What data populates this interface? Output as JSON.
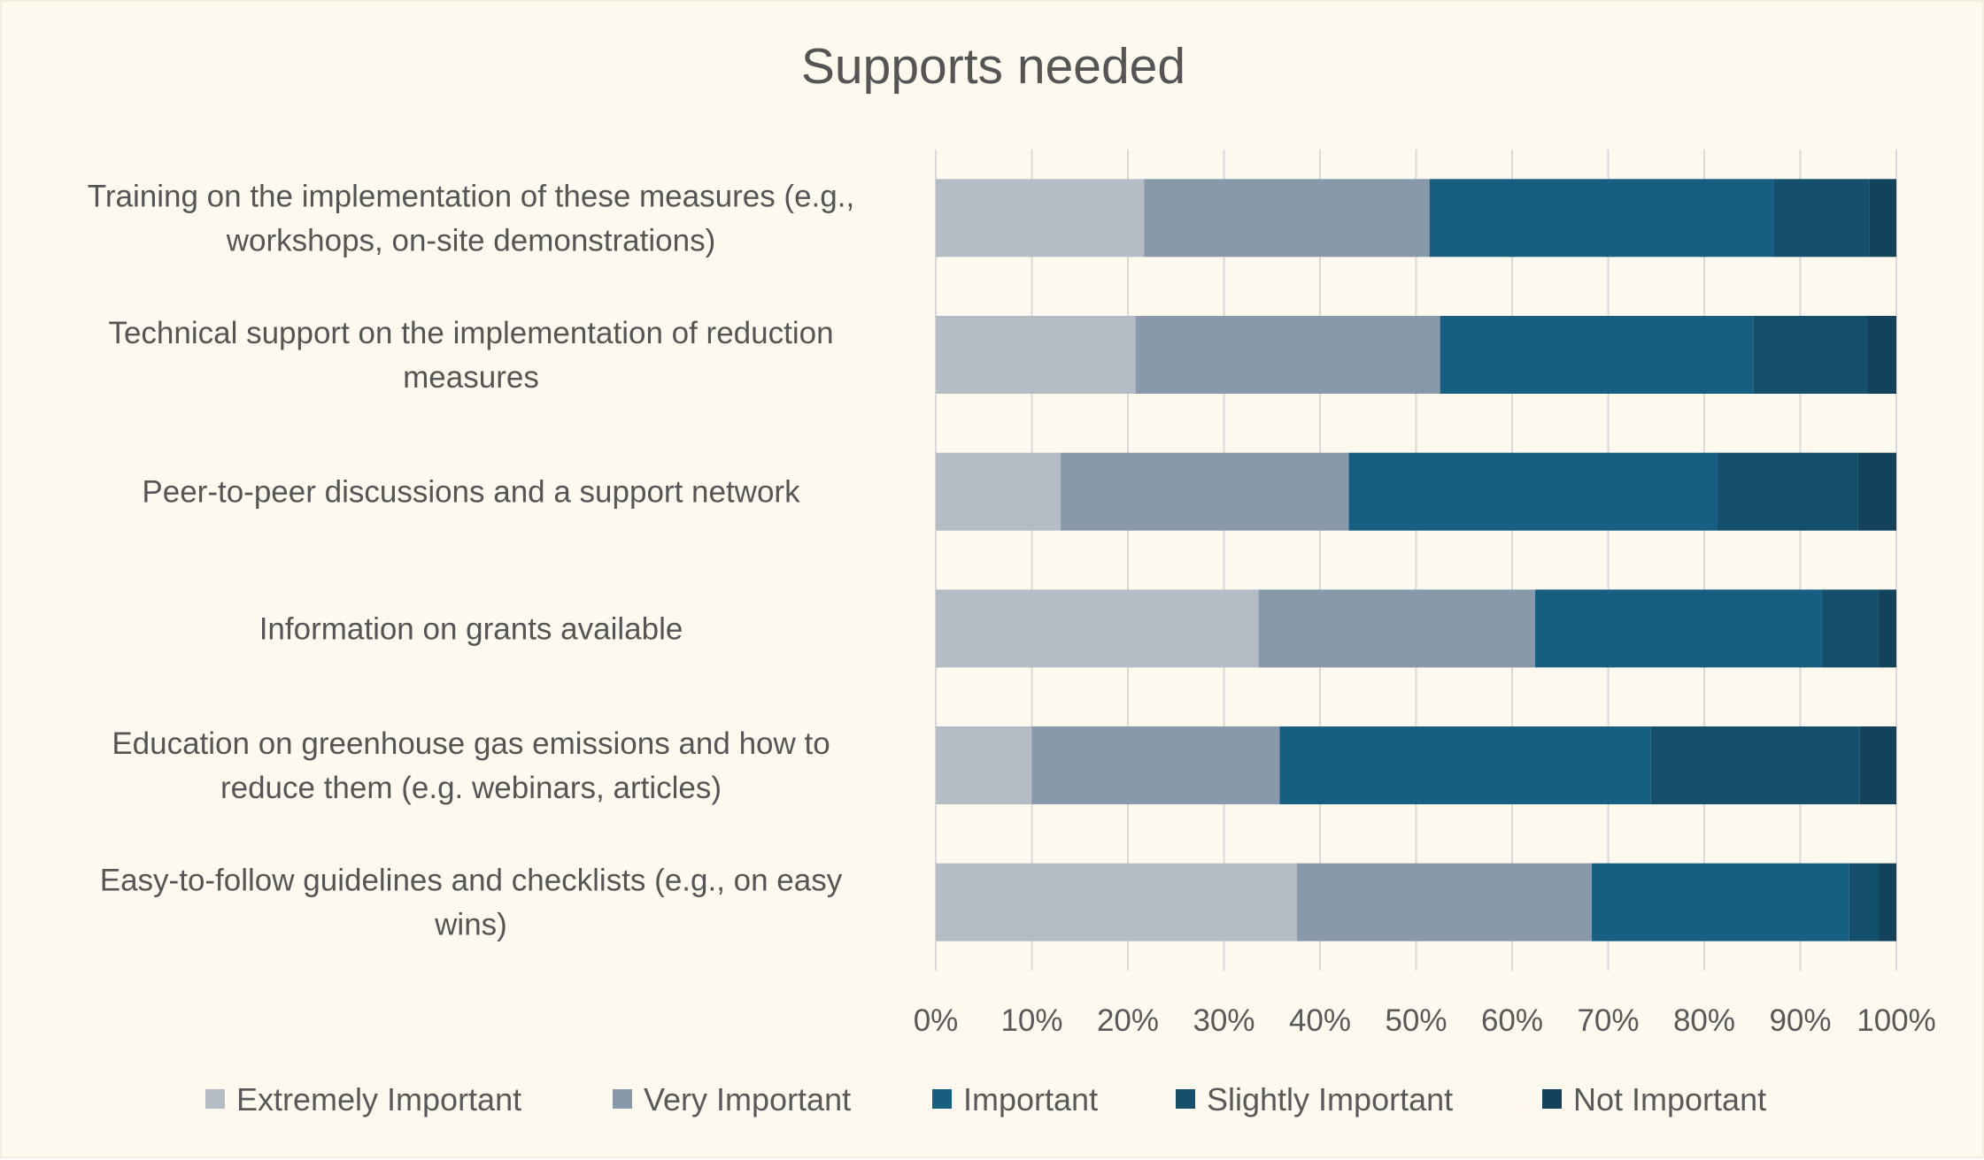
{
  "chart_data": {
    "type": "bar",
    "orientation": "horizontal",
    "stacked": "percent",
    "title": "Supports needed",
    "xlabel": "",
    "ylabel": "",
    "xlim": [
      0,
      100
    ],
    "grid": true,
    "legend_position": "bottom",
    "x_tick_labels": [
      "0%",
      "10%",
      "20%",
      "30%",
      "40%",
      "50%",
      "60%",
      "70%",
      "80%",
      "90%",
      "100%"
    ],
    "categories": [
      [
        "Training on the implementation of these measures (e.g.,",
        "workshops, on-site demonstrations)"
      ],
      [
        "Technical support on the implementation of reduction",
        "measures"
      ],
      [
        "Peer-to-peer discussions and a support network"
      ],
      [
        "Information on grants available"
      ],
      [
        "Education on greenhouse gas emissions and how to",
        "reduce them (e.g. webinars, articles)"
      ],
      [
        "Easy-to-follow guidelines and checklists (e.g., on easy",
        "wins)"
      ]
    ],
    "series": [
      {
        "name": "Extremely Important",
        "color": "#b4bdc6",
        "values": [
          21.7,
          20.8,
          13.0,
          33.6,
          10.0,
          37.6
        ]
      },
      {
        "name": "Very Important",
        "color": "#8899aa",
        "values": [
          29.7,
          31.7,
          30.0,
          28.8,
          25.8,
          30.7
        ]
      },
      {
        "name": "Important",
        "color": "#165e82",
        "values": [
          35.8,
          32.6,
          38.3,
          29.8,
          38.6,
          26.8
        ]
      },
      {
        "name": "Slightly Important",
        "color": "#14506b",
        "values": [
          10.0,
          11.9,
          14.7,
          5.9,
          21.8,
          3.1
        ]
      },
      {
        "name": "Not Important",
        "color": "#12425c",
        "values": [
          2.8,
          3.0,
          4.0,
          1.9,
          3.8,
          1.8
        ]
      }
    ]
  }
}
